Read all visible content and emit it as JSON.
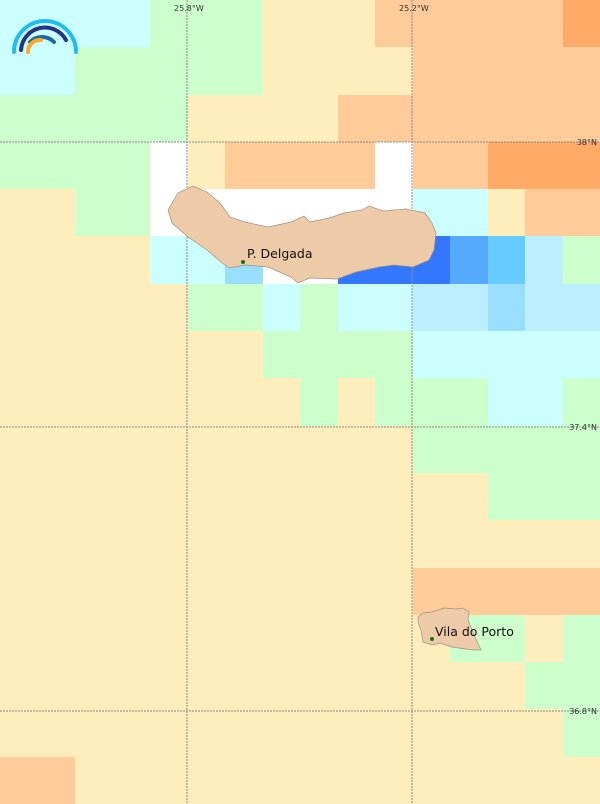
{
  "map": {
    "legend_colors": {
      "W": "#ffffff",
      "C": "#ccffff",
      "G": "#ccffcc",
      "Y": "#ffeebb",
      "O": "#ffcc99",
      "D": "#ffaa66",
      "B": "#3377ff",
      "M": "#55aaff",
      "S": "#66ccff",
      "L": "#99ddff",
      "P": "#bbeeff"
    },
    "cells": [
      "CCCCGGGYYYOOOOOD",
      "CCGGGGGYYYYOOOOO",
      "GGGGGYYYYOOOOOOO",
      "GGGGWYOOOOWOODDD",
      "YYGGWWWWWWWCCYOO",
      "YYYYCCLWWBBBMSPG",
      "YYYYYGGCGCCPPLPP",
      "YYYYYYYGGGGCCCCC",
      "YYYYYYYYGYGGGCCG",
      "YYYYYYYYYYYGGGGG",
      "YYYYYYYYYYYYYGGG",
      "YYYYYYYYYYYYYYYY",
      "YYYYYYYYYYYOOOOO",
      "YYYYYYYYYYYYGGYG",
      "YYYYYYYYYYYYYYGG",
      "YYYYYYYYYYYYYYYG",
      "OOYYYYYYYYYYYYYY"
    ],
    "land_color": "#eecba8",
    "town_color": "#117711",
    "longitude_labels": [
      "25.8°W",
      "25.2°W"
    ],
    "latitude_labels": [
      "38°N",
      "37.4°N",
      "36.8°N"
    ],
    "places": [
      "P. Delgada",
      "Vila do Porto"
    ],
    "logo_icon": "rainbow-arcs-logo"
  }
}
